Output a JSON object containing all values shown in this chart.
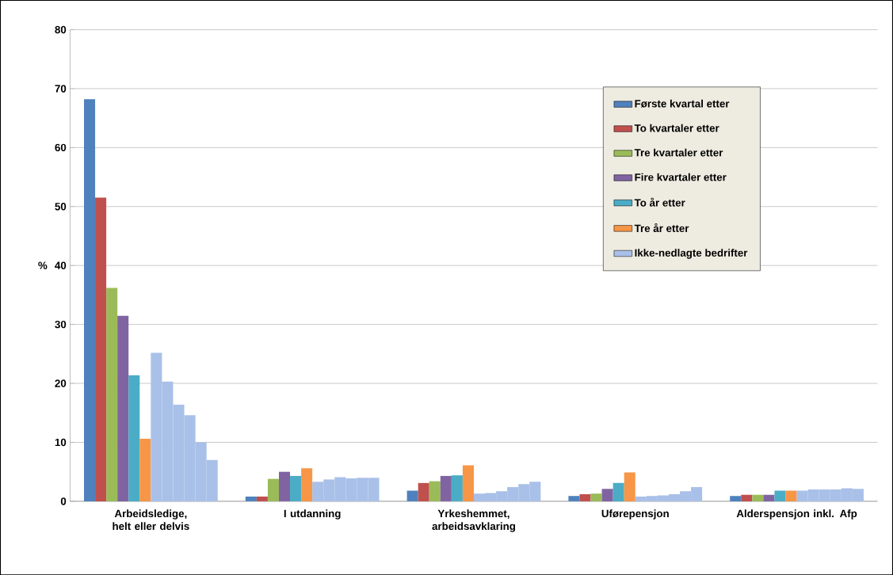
{
  "chart_data": {
    "type": "bar",
    "ylabel": "%",
    "categories": [
      "Arbeidsledige, helt eller delvis",
      "I utdanning",
      "Yrkeshemmet, arbeidsavklaring",
      "Uførepensjon",
      "Alderspensjon inkl. Afp"
    ],
    "series": [
      {
        "name": "Første kvartal etter",
        "color": "#4f81bd",
        "values": [
          68.2,
          0.8,
          1.8,
          0.9,
          0.9
        ]
      },
      {
        "name": "To kvartaler etter",
        "color": "#c0504d",
        "values": [
          51.5,
          0.8,
          3.1,
          1.2,
          1.1
        ]
      },
      {
        "name": "Tre kvartaler etter",
        "color": "#9bbb59",
        "values": [
          36.2,
          3.8,
          3.4,
          1.3,
          1.1
        ]
      },
      {
        "name": "Fire kvartaler etter",
        "color": "#8064a2",
        "values": [
          31.5,
          5.0,
          4.3,
          2.1,
          1.1
        ]
      },
      {
        "name": "To år etter",
        "color": "#4bacc6",
        "values": [
          21.4,
          4.3,
          4.4,
          3.1,
          1.8
        ]
      },
      {
        "name": "Tre år etter",
        "color": "#f79646",
        "values": [
          10.6,
          5.6,
          6.1,
          4.9,
          1.8
        ]
      },
      {
        "name": "Ikke-nedlagte bedrifter",
        "color": "#a9c0e8",
        "values": [
          25.2,
          3.3,
          1.3,
          0.8,
          1.8
        ]
      },
      {
        "color": "#a9c0e8",
        "values": [
          20.3,
          3.7,
          1.4,
          0.9,
          2.0
        ]
      },
      {
        "color": "#a9c0e8",
        "values": [
          16.4,
          4.1,
          1.7,
          1.0,
          2.0
        ]
      },
      {
        "color": "#a9c0e8",
        "values": [
          14.6,
          3.9,
          2.4,
          1.2,
          2.0
        ]
      },
      {
        "color": "#a9c0e8",
        "values": [
          10.0,
          4.0,
          2.9,
          1.7,
          2.2
        ]
      },
      {
        "color": "#a9c0e8",
        "values": [
          7.0,
          4.0,
          3.3,
          2.4,
          2.1
        ]
      }
    ],
    "ylim": [
      0,
      80
    ],
    "yticks": [
      0,
      10,
      20,
      30,
      40,
      50,
      60,
      70,
      80
    ],
    "grid": "y",
    "legend": "top right"
  }
}
